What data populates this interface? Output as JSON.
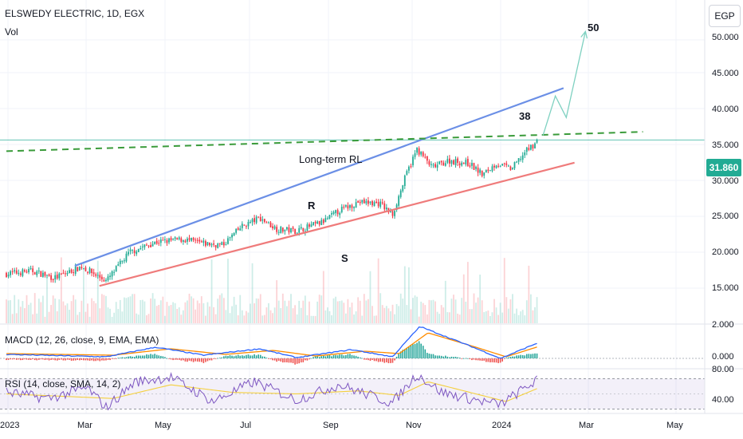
{
  "header": {
    "symbol_title": "ELSWEDY ELECTRIC, 1D, EGX",
    "vol_label": "Vol",
    "currency": "EGP"
  },
  "last_price": "31.860",
  "price_axis": [
    "50.000",
    "45.000",
    "40.000",
    "35.000",
    "30.000",
    "25.000",
    "20.000",
    "15.000"
  ],
  "macd": {
    "label": "MACD (12, 26, close, 9, EMA, EMA)",
    "axis": [
      "2.000",
      "0.000"
    ]
  },
  "rsi": {
    "label": "RSI (14, close, SMA, 14, 2)",
    "axis": [
      "80.00",
      "40.00"
    ]
  },
  "time_axis": [
    "2023",
    "Mar",
    "May",
    "Jul",
    "Sep",
    "Nov",
    "2024",
    "Mar",
    "May"
  ],
  "annotations": {
    "target_high": "50",
    "target_mid": "38",
    "long_term": "Long-term RL",
    "resistance": "R",
    "support": "S"
  },
  "colors": {
    "up": "#22ab94",
    "down": "#f23645",
    "resistance": "#6b8fe6",
    "support": "#ef7b7b",
    "rl": "#3a9b3a",
    "macd": "#2962ff",
    "signal": "#ff8c00",
    "rsi": "#7e57c2"
  },
  "chart_data": {
    "type": "candlestick",
    "symbol": "ELSWEDY ELECTRIC",
    "interval": "1D",
    "exchange": "EGX",
    "currency": "EGP",
    "last_close": 31.86,
    "ylim": [
      11,
      52
    ],
    "xrange": [
      "2023-01-01",
      "2024-05-10"
    ],
    "price_path": [
      {
        "date": "2023-01-01",
        "close": 13.2
      },
      {
        "date": "2023-01-20",
        "close": 13.6
      },
      {
        "date": "2023-02-05",
        "close": 12.6
      },
      {
        "date": "2023-02-25",
        "close": 14.2
      },
      {
        "date": "2023-03-15",
        "close": 12.2
      },
      {
        "date": "2023-04-01",
        "close": 16.2
      },
      {
        "date": "2023-04-20",
        "close": 17.6
      },
      {
        "date": "2023-05-10",
        "close": 18.0
      },
      {
        "date": "2023-05-25",
        "close": 17.4
      },
      {
        "date": "2023-06-08",
        "close": 17.2
      },
      {
        "date": "2023-06-22",
        "close": 19.8
      },
      {
        "date": "2023-07-05",
        "close": 21.0
      },
      {
        "date": "2023-07-18",
        "close": 19.4
      },
      {
        "date": "2023-08-01",
        "close": 19.2
      },
      {
        "date": "2023-08-20",
        "close": 20.4
      },
      {
        "date": "2023-09-01",
        "close": 22.0
      },
      {
        "date": "2023-09-15",
        "close": 23.2
      },
      {
        "date": "2023-10-01",
        "close": 23.0
      },
      {
        "date": "2023-10-10",
        "close": 21.4
      },
      {
        "date": "2023-10-20",
        "close": 27.0
      },
      {
        "date": "2023-10-28",
        "close": 30.6
      },
      {
        "date": "2023-11-08",
        "close": 28.0
      },
      {
        "date": "2023-11-20",
        "close": 29.0
      },
      {
        "date": "2023-12-05",
        "close": 28.6
      },
      {
        "date": "2023-12-15",
        "close": 27.0
      },
      {
        "date": "2023-12-25",
        "close": 28.6
      },
      {
        "date": "2024-01-05",
        "close": 27.8
      },
      {
        "date": "2024-01-15",
        "close": 30.2
      },
      {
        "date": "2024-01-25",
        "close": 31.86
      }
    ],
    "trendlines": [
      {
        "name": "R",
        "from": [
          "2023-02-20",
          14.3
        ],
        "to": [
          "2024-02-12",
          39.1
        ]
      },
      {
        "name": "S",
        "from": [
          "2023-03-10",
          11.5
        ],
        "to": [
          "2024-02-20",
          28.7
        ]
      },
      {
        "name": "Long-term RL",
        "from": [
          "2023-01-01",
          30.3
        ],
        "to": [
          "2024-04-10",
          33.0
        ]
      }
    ],
    "projection": [
      {
        "date": "2024-01-28",
        "price": 32.5
      },
      {
        "date": "2024-02-06",
        "price": 38.0
      },
      {
        "date": "2024-02-14",
        "price": 35.0
      },
      {
        "date": "2024-02-28",
        "price": 47.0
      }
    ],
    "horizontal_line": 31.86,
    "targets": [
      50,
      38
    ],
    "macd": {
      "params": "12, 26, close, 9, EMA, EMA",
      "ylim": [
        -0.6,
        2.3
      ],
      "macd_path": [
        {
          "date": "2023-01-01",
          "value": 0.25
        },
        {
          "date": "2023-03-15",
          "value": 0.1
        },
        {
          "date": "2023-04-20",
          "value": 0.7
        },
        {
          "date": "2023-05-25",
          "value": 0.2
        },
        {
          "date": "2023-07-05",
          "value": 0.6
        },
        {
          "date": "2023-08-01",
          "value": 0.05
        },
        {
          "date": "2023-09-10",
          "value": 0.55
        },
        {
          "date": "2023-10-10",
          "value": 0.1
        },
        {
          "date": "2023-10-30",
          "value": 2.0
        },
        {
          "date": "2023-12-05",
          "value": 0.8
        },
        {
          "date": "2023-12-28",
          "value": 0.0
        },
        {
          "date": "2024-01-25",
          "value": 1.0
        }
      ],
      "signal_path": [
        {
          "date": "2023-01-01",
          "value": 0.3
        },
        {
          "date": "2023-03-20",
          "value": 0.2
        },
        {
          "date": "2023-05-01",
          "value": 0.6
        },
        {
          "date": "2023-06-10",
          "value": 0.25
        },
        {
          "date": "2023-07-15",
          "value": 0.5
        },
        {
          "date": "2023-08-15",
          "value": 0.15
        },
        {
          "date": "2023-09-20",
          "value": 0.45
        },
        {
          "date": "2023-10-15",
          "value": 0.3
        },
        {
          "date": "2023-11-05",
          "value": 1.6
        },
        {
          "date": "2023-12-10",
          "value": 0.7
        },
        {
          "date": "2024-01-01",
          "value": 0.1
        },
        {
          "date": "2024-01-25",
          "value": 0.75
        }
      ]
    },
    "rsi": {
      "params": "14, close, SMA, 14, 2",
      "ylim": [
        22,
        88
      ],
      "bands": [
        30,
        70
      ],
      "rsi_path": [
        {
          "date": "2023-01-01",
          "value": 52
        },
        {
          "date": "2023-02-01",
          "value": 44
        },
        {
          "date": "2023-03-01",
          "value": 58
        },
        {
          "date": "2023-03-15",
          "value": 32
        },
        {
          "date": "2023-04-05",
          "value": 66
        },
        {
          "date": "2023-05-01",
          "value": 72
        },
        {
          "date": "2023-06-01",
          "value": 40
        },
        {
          "date": "2023-07-01",
          "value": 66
        },
        {
          "date": "2023-08-01",
          "value": 42
        },
        {
          "date": "2023-09-01",
          "value": 62
        },
        {
          "date": "2023-10-10",
          "value": 38
        },
        {
          "date": "2023-10-28",
          "value": 76
        },
        {
          "date": "2023-11-15",
          "value": 52
        },
        {
          "date": "2023-12-15",
          "value": 40
        },
        {
          "date": "2023-12-28",
          "value": 36
        },
        {
          "date": "2024-01-25",
          "value": 70
        }
      ],
      "rsi_ma_path": [
        {
          "date": "2023-01-01",
          "value": 50
        },
        {
          "date": "2023-03-20",
          "value": 44
        },
        {
          "date": "2023-05-01",
          "value": 62
        },
        {
          "date": "2023-06-15",
          "value": 52
        },
        {
          "date": "2023-08-01",
          "value": 50
        },
        {
          "date": "2023-09-15",
          "value": 54
        },
        {
          "date": "2023-10-15",
          "value": 48
        },
        {
          "date": "2023-11-05",
          "value": 66
        },
        {
          "date": "2023-12-10",
          "value": 50
        },
        {
          "date": "2024-01-01",
          "value": 40
        },
        {
          "date": "2024-01-25",
          "value": 58
        }
      ]
    }
  }
}
